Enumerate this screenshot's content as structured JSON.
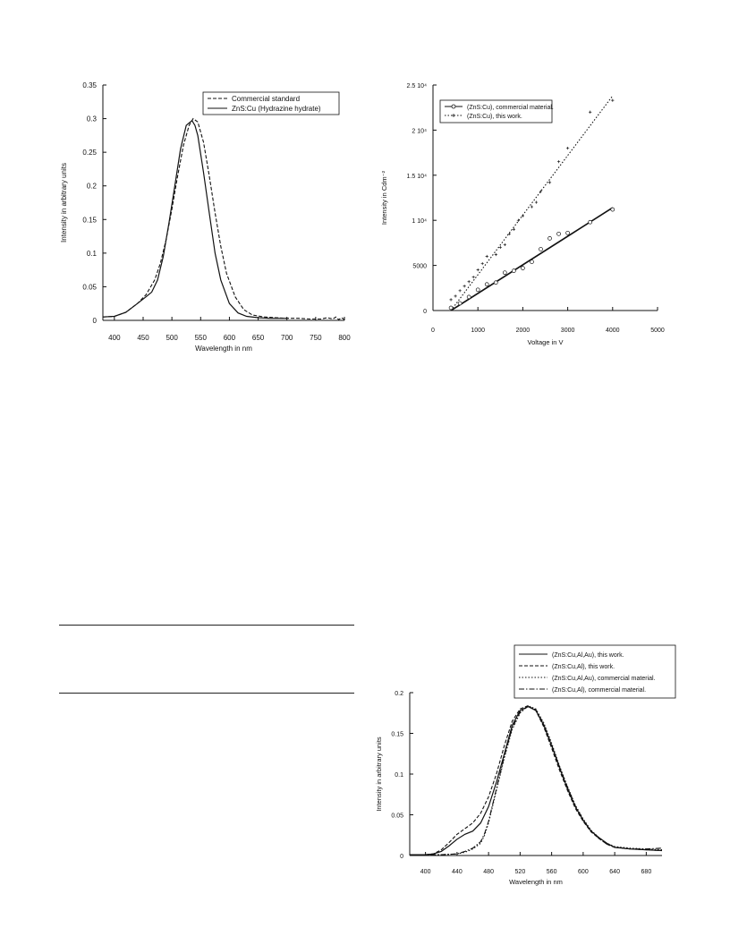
{
  "chart_data": [
    {
      "type": "line",
      "title": "",
      "xlabel": "Wavelength in nm",
      "ylabel": "Intensity in arbitrary units",
      "xlim": [
        380,
        800
      ],
      "ylim": [
        0,
        0.35
      ],
      "xticks": [
        400,
        450,
        500,
        550,
        600,
        650,
        700,
        750,
        800
      ],
      "xtick_labels": [
        "400",
        "450",
        "500",
        "550",
        "600",
        "650",
        "700",
        "750",
        "800"
      ],
      "yticks": [
        0,
        0.05,
        0.1,
        0.15,
        0.2,
        0.25,
        0.3,
        0.35
      ],
      "ytick_labels": [
        "0",
        "0.05",
        "0.1",
        "0.15",
        "0.2",
        "0.25",
        "0.3",
        "0.35"
      ],
      "legend_position": "top-right",
      "series": [
        {
          "name": "Commercial standard",
          "style": "dashed",
          "x": [
            380,
            400,
            420,
            440,
            455,
            470,
            480,
            490,
            500,
            510,
            520,
            530,
            537,
            545,
            555,
            565,
            575,
            585,
            595,
            610,
            625,
            640,
            660,
            680,
            700,
            720,
            740,
            760,
            770,
            780,
            785,
            790,
            795,
            800
          ],
          "y": [
            0.005,
            0.006,
            0.012,
            0.025,
            0.038,
            0.06,
            0.085,
            0.12,
            0.165,
            0.215,
            0.26,
            0.29,
            0.3,
            0.295,
            0.265,
            0.215,
            0.16,
            0.11,
            0.07,
            0.035,
            0.016,
            0.008,
            0.005,
            0.004,
            0.003,
            0.003,
            0.002,
            0.002,
            0.004,
            0.002,
            0.005,
            0.001,
            0.004,
            0.001
          ]
        },
        {
          "name": "ZnS:Cu (Hydrazine hydrate)",
          "style": "solid",
          "x": [
            380,
            400,
            420,
            440,
            455,
            465,
            475,
            485,
            495,
            505,
            515,
            525,
            535,
            540,
            545,
            555,
            565,
            575,
            585,
            600,
            615,
            630,
            650,
            670,
            690,
            700
          ],
          "y": [
            0.005,
            0.006,
            0.012,
            0.025,
            0.035,
            0.042,
            0.06,
            0.095,
            0.145,
            0.2,
            0.255,
            0.29,
            0.297,
            0.29,
            0.275,
            0.22,
            0.16,
            0.1,
            0.06,
            0.025,
            0.011,
            0.006,
            0.004,
            0.003,
            0.003,
            0.003
          ]
        }
      ]
    },
    {
      "type": "scatter",
      "title": "",
      "xlabel": "Voltage in V",
      "ylabel": "Intensity in Cdm⁻²",
      "xlim": [
        0,
        5000
      ],
      "ylim": [
        0,
        25000
      ],
      "xticks": [
        0,
        1000,
        2000,
        3000,
        4000,
        5000
      ],
      "xtick_labels": [
        "0",
        "1000",
        "2000",
        "3000",
        "4000",
        "5000"
      ],
      "yticks": [
        0,
        5000,
        10000,
        15000,
        20000,
        25000
      ],
      "ytick_labels": [
        "0",
        "5000",
        "1 10⁴",
        "1.5 10⁴",
        "2 10⁴",
        "2.5 10⁴"
      ],
      "legend_position": "top-left",
      "series": [
        {
          "name": "(ZnS:Cu), commercial material.",
          "marker": "circle",
          "line": "solid",
          "fit": [
            [
              400,
              0
            ],
            [
              4000,
              11400
            ]
          ],
          "points": [
            [
              400,
              300
            ],
            [
              600,
              800
            ],
            [
              800,
              1500
            ],
            [
              1000,
              2300
            ],
            [
              1200,
              2900
            ],
            [
              1400,
              3100
            ],
            [
              1600,
              4200
            ],
            [
              1800,
              4400
            ],
            [
              2000,
              4700
            ],
            [
              2200,
              5400
            ],
            [
              2400,
              6800
            ],
            [
              2600,
              8000
            ],
            [
              2800,
              8500
            ],
            [
              3000,
              8600
            ],
            [
              3500,
              9800
            ],
            [
              4000,
              11200
            ]
          ]
        },
        {
          "name": "(ZnS:Cu), this work.",
          "marker": "plus",
          "line": "dotted",
          "fit": [
            [
              400,
              0
            ],
            [
              4000,
              23800
            ]
          ],
          "points": [
            [
              400,
              1200
            ],
            [
              500,
              1600
            ],
            [
              600,
              2200
            ],
            [
              700,
              2700
            ],
            [
              800,
              3200
            ],
            [
              900,
              3700
            ],
            [
              1000,
              4500
            ],
            [
              1100,
              5200
            ],
            [
              1200,
              6000
            ],
            [
              1400,
              6200
            ],
            [
              1500,
              7000
            ],
            [
              1600,
              7300
            ],
            [
              1700,
              8500
            ],
            [
              1800,
              9000
            ],
            [
              1900,
              10000
            ],
            [
              2000,
              10500
            ],
            [
              2200,
              11500
            ],
            [
              2300,
              12000
            ],
            [
              2400,
              13200
            ],
            [
              2600,
              14200
            ],
            [
              2800,
              16500
            ],
            [
              3000,
              18000
            ],
            [
              3500,
              22000
            ],
            [
              4000,
              23300
            ]
          ]
        }
      ]
    },
    {
      "type": "line",
      "title": "",
      "xlabel": "Wavelength in nm",
      "ylabel": "Intensity in arbitrary units",
      "xlim": [
        380,
        700
      ],
      "ylim": [
        0,
        0.2
      ],
      "xticks": [
        400,
        440,
        480,
        520,
        560,
        600,
        640,
        680
      ],
      "xtick_labels": [
        "400",
        "440",
        "480",
        "520",
        "560",
        "600",
        "640",
        "680"
      ],
      "yticks": [
        0,
        0.05,
        0.1,
        0.15,
        0.2
      ],
      "ytick_labels": [
        "0",
        "0.05",
        "0.1",
        "0.15",
        "0.2"
      ],
      "legend_position": "top-right",
      "series": [
        {
          "name": "(ZnS:Cu,Al,Au), this work.",
          "style": "solid",
          "x": [
            380,
            400,
            410,
            420,
            430,
            440,
            450,
            460,
            470,
            480,
            490,
            500,
            510,
            520,
            530,
            540,
            550,
            560,
            570,
            580,
            590,
            600,
            610,
            620,
            630,
            640,
            660,
            680,
            700
          ],
          "y": [
            0.001,
            0.001,
            0.002,
            0.005,
            0.012,
            0.02,
            0.026,
            0.03,
            0.04,
            0.06,
            0.09,
            0.125,
            0.16,
            0.178,
            0.183,
            0.178,
            0.16,
            0.135,
            0.108,
            0.082,
            0.06,
            0.043,
            0.03,
            0.022,
            0.015,
            0.01,
            0.008,
            0.007,
            0.006
          ]
        },
        {
          "name": "(ZnS:Cu,Al), this work.",
          "style": "dashed",
          "x": [
            380,
            400,
            410,
            420,
            430,
            440,
            450,
            460,
            470,
            480,
            490,
            500,
            510,
            520,
            530,
            540,
            550,
            560,
            570,
            580,
            590,
            600,
            610,
            620,
            630,
            640,
            660,
            680,
            700
          ],
          "y": [
            0.001,
            0.001,
            0.002,
            0.007,
            0.016,
            0.026,
            0.033,
            0.04,
            0.052,
            0.072,
            0.1,
            0.135,
            0.165,
            0.18,
            0.184,
            0.178,
            0.158,
            0.132,
            0.105,
            0.08,
            0.058,
            0.042,
            0.029,
            0.021,
            0.014,
            0.01,
            0.008,
            0.007,
            0.006
          ]
        },
        {
          "name": "(ZnS:Cu,Al,Au), commercial material.",
          "style": "dotted",
          "x": [
            380,
            400,
            420,
            440,
            450,
            460,
            470,
            475,
            480,
            490,
            500,
            510,
            520,
            530,
            540,
            550,
            560,
            570,
            580,
            590,
            600,
            610,
            620,
            630,
            640,
            660,
            680,
            700
          ],
          "y": [
            0.001,
            0.001,
            0.001,
            0.002,
            0.004,
            0.008,
            0.015,
            0.025,
            0.04,
            0.08,
            0.12,
            0.155,
            0.175,
            0.184,
            0.18,
            0.163,
            0.138,
            0.11,
            0.085,
            0.062,
            0.045,
            0.031,
            0.022,
            0.015,
            0.011,
            0.009,
            0.008,
            0.007
          ]
        },
        {
          "name": "(ZnS:Cu,Al), commercial material.",
          "style": "dash-dot",
          "x": [
            380,
            400,
            420,
            440,
            450,
            460,
            470,
            475,
            480,
            490,
            500,
            510,
            520,
            530,
            540,
            550,
            560,
            570,
            580,
            590,
            600,
            610,
            620,
            630,
            640,
            660,
            680,
            700
          ],
          "y": [
            0.001,
            0.001,
            0.001,
            0.002,
            0.005,
            0.009,
            0.017,
            0.027,
            0.042,
            0.082,
            0.122,
            0.157,
            0.176,
            0.183,
            0.179,
            0.161,
            0.136,
            0.109,
            0.084,
            0.061,
            0.044,
            0.03,
            0.021,
            0.014,
            0.01,
            0.008,
            0.008,
            0.009
          ]
        }
      ]
    }
  ]
}
